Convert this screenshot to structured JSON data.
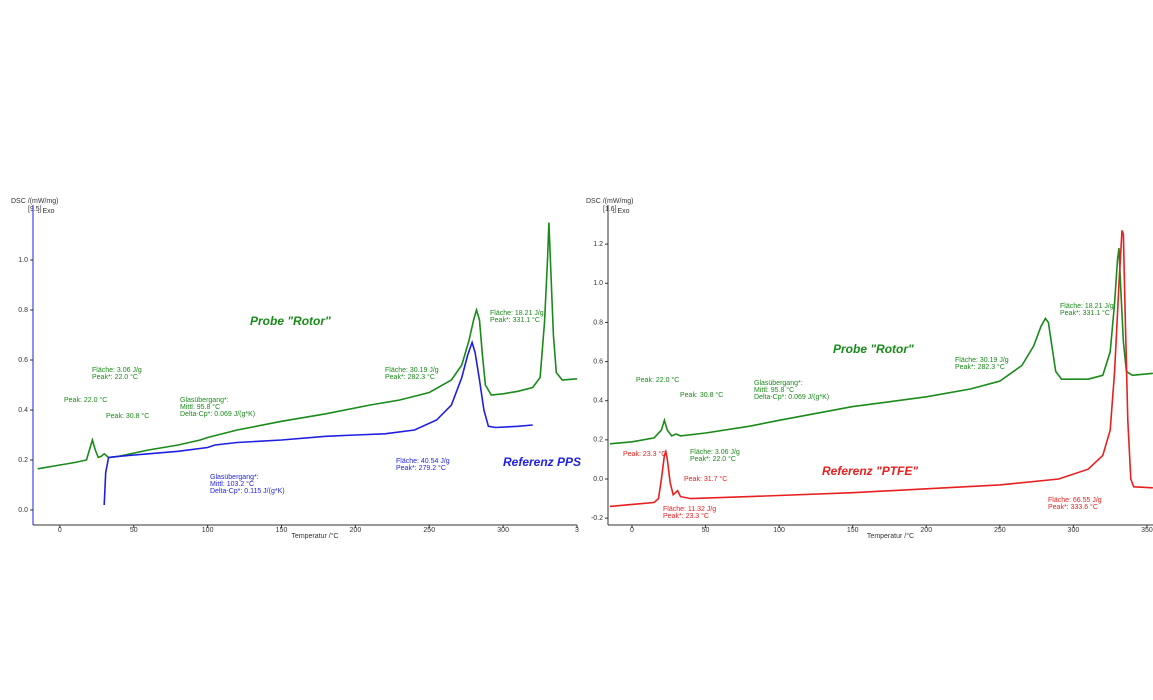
{
  "chart_data": [
    {
      "type": "line",
      "ylabel": "DSC /(mW/mg)",
      "yscale_label": "[9.5]",
      "exo_label": "↓ Exo",
      "xlabel": "Temperatur /°C",
      "xlim": [
        -18.2,
        350
      ],
      "ylim": [
        -0.06,
        1.22
      ],
      "axis_color": "#2020e0",
      "xticks": [
        0,
        50,
        100,
        150,
        200,
        250,
        300,
        {
          "value": 350,
          "label": "3"
        }
      ],
      "yticks": [
        {
          "value": 0,
          "label": "0.0"
        },
        0.2,
        0.4,
        0.6,
        0.8,
        {
          "value": 1,
          "label": "1.0"
        }
      ],
      "series": [
        {
          "color": "#1a8a1a",
          "x": [
            -15,
            0,
            10,
            18,
            20,
            22,
            24,
            26,
            28,
            30,
            33,
            40,
            60,
            80,
            95,
            100,
            120,
            150,
            180,
            210,
            230,
            250,
            265,
            272,
            277,
            280,
            282,
            284,
            286,
            288,
            292,
            300,
            310,
            320,
            325,
            328,
            330,
            331,
            332,
            334,
            336,
            340,
            350
          ],
          "values": [
            0.165,
            0.18,
            0.19,
            0.2,
            0.24,
            0.28,
            0.24,
            0.21,
            0.215,
            0.225,
            0.21,
            0.215,
            0.24,
            0.26,
            0.28,
            0.29,
            0.32,
            0.355,
            0.385,
            0.42,
            0.44,
            0.47,
            0.52,
            0.58,
            0.68,
            0.76,
            0.8,
            0.76,
            0.62,
            0.5,
            0.46,
            0.465,
            0.475,
            0.49,
            0.53,
            0.75,
            1.0,
            1.15,
            1.0,
            0.7,
            0.55,
            0.52,
            0.525
          ]
        },
        {
          "color": "#1f1fe0",
          "x": [
            30,
            31,
            33,
            40,
            60,
            80,
            100,
            105,
            120,
            150,
            180,
            200,
            220,
            240,
            255,
            265,
            272,
            276,
            279,
            281,
            284,
            287,
            290,
            295,
            310,
            320
          ],
          "values": [
            0.02,
            0.15,
            0.21,
            0.215,
            0.225,
            0.235,
            0.25,
            0.26,
            0.27,
            0.28,
            0.295,
            0.3,
            0.305,
            0.32,
            0.36,
            0.42,
            0.53,
            0.62,
            0.67,
            0.63,
            0.52,
            0.4,
            0.335,
            0.33,
            0.335,
            0.34
          ]
        }
      ],
      "annotations": [
        {
          "lines": [
            "Peak: 22.0 °C"
          ],
          "color": "#1a8a1a"
        },
        {
          "lines": [
            "Fläche: 3.06 J/g",
            "Peak*: 22.0 °C"
          ],
          "color": "#1a8a1a"
        },
        {
          "lines": [
            "Peak: 30.8 °C"
          ],
          "color": "#1a8a1a"
        },
        {
          "lines": [
            "Glasübergang*:",
            "Mittl: 95.8 °C",
            "Delta-Cp*: 0.069 J/(g*K)"
          ],
          "color": "#1a8a1a"
        },
        {
          "lines": [
            "Fläche: 30.19 J/g",
            "Peak*: 282.3 °C"
          ],
          "color": "#1a8a1a"
        },
        {
          "lines": [
            "Fläche: 18.21 J/g",
            "Peak*: 331.1 °C"
          ],
          "color": "#1a8a1a"
        },
        {
          "lines": [
            "Probe \"Rotor\""
          ],
          "color": "#1a8a1a"
        },
        {
          "lines": [
            "Referenz PPS"
          ],
          "color": "#1f1fe0"
        },
        {
          "lines": [
            "Glasübergang*:",
            "Mittl: 103.2 °C",
            "Delta-Cp*: 0.115 J/(g*K)"
          ],
          "color": "#1f1fe0"
        },
        {
          "lines": [
            "Fläche: 40.54 J/g",
            "Peak*: 279.2 °C"
          ],
          "color": "#1f1fe0"
        }
      ]
    },
    {
      "type": "line",
      "ylabel": "DSC /(mW/mg)",
      "yscale_label": "[1.6]",
      "exo_label": "↓ Exo",
      "xlabel": "Temperatur /°C",
      "xlim": [
        -16.3,
        354.1
      ],
      "ylim": [
        -0.235,
        1.4
      ],
      "axis_color": "#333333",
      "xticks": [
        0,
        50,
        100,
        150,
        200,
        250,
        300,
        350
      ],
      "yticks": [
        -0.2,
        {
          "value": 0,
          "label": "0.0"
        },
        0.2,
        0.4,
        0.6,
        0.8,
        {
          "value": 1,
          "label": "1.0"
        },
        1.2
      ],
      "series": [
        {
          "color": "#1a8a1a",
          "x": [
            -15,
            0,
            15,
            20,
            22,
            24,
            27,
            30,
            33,
            50,
            80,
            100,
            150,
            200,
            230,
            250,
            265,
            273,
            278,
            281,
            283,
            285,
            288,
            292,
            310,
            320,
            325,
            328,
            330,
            331,
            332,
            334,
            336,
            340,
            354
          ],
          "values": [
            0.18,
            0.19,
            0.21,
            0.25,
            0.3,
            0.25,
            0.22,
            0.23,
            0.22,
            0.235,
            0.27,
            0.3,
            0.37,
            0.42,
            0.46,
            0.5,
            0.58,
            0.68,
            0.78,
            0.82,
            0.8,
            0.7,
            0.55,
            0.51,
            0.51,
            0.53,
            0.65,
            0.9,
            1.12,
            1.18,
            1.0,
            0.7,
            0.55,
            0.53,
            0.54
          ]
        },
        {
          "color": "#e82020",
          "x": [
            -15,
            0,
            15,
            18,
            20,
            22,
            23,
            24,
            26,
            28,
            31,
            33,
            40,
            80,
            150,
            200,
            250,
            290,
            310,
            320,
            325,
            328,
            331,
            333,
            334,
            335,
            337,
            339,
            341,
            354
          ],
          "values": [
            -0.14,
            -0.13,
            -0.12,
            -0.1,
            0.0,
            0.12,
            0.14,
            0.1,
            -0.02,
            -0.08,
            -0.06,
            -0.09,
            -0.1,
            -0.09,
            -0.07,
            -0.05,
            -0.03,
            0.0,
            0.05,
            0.12,
            0.25,
            0.55,
            1.0,
            1.27,
            1.25,
            0.9,
            0.3,
            0.0,
            -0.04,
            -0.045
          ]
        }
      ],
      "annotations": [
        {
          "lines": [
            "Peak: 22.0 °C"
          ],
          "color": "#1a8a1a"
        },
        {
          "lines": [
            "Peak: 30.8 °C"
          ],
          "color": "#1a8a1a"
        },
        {
          "lines": [
            "Fläche: 3.06 J/g",
            "Peak*: 22.0 °C"
          ],
          "color": "#1a8a1a"
        },
        {
          "lines": [
            "Glasübergang*:",
            "Mittl: 95.8 °C",
            "Delta-Cp*: 0.069 J/(g*K)"
          ],
          "color": "#1a8a1a"
        },
        {
          "lines": [
            "Fläche: 30.19 J/g",
            "Peak*: 282.3 °C"
          ],
          "color": "#1a8a1a"
        },
        {
          "lines": [
            "Fläche: 18.21 J/g",
            "Peak*: 331.1 °C"
          ],
          "color": "#1a8a1a"
        },
        {
          "lines": [
            "Probe \"Rotor\""
          ],
          "color": "#1a8a1a"
        },
        {
          "lines": [
            "Peak: 23.3 °C"
          ],
          "color": "#e82020"
        },
        {
          "lines": [
            "Peak: 31.7 °C"
          ],
          "color": "#e82020"
        },
        {
          "lines": [
            "Fläche: 11.32 J/g",
            "Peak*: 23.3 °C"
          ],
          "color": "#e82020"
        },
        {
          "lines": [
            "Fläche: 66.55 J/g",
            "Peak*: 333.6 °C"
          ],
          "color": "#e82020"
        },
        {
          "lines": [
            "Referenz \"PTFE\""
          ],
          "color": "#e82020"
        }
      ]
    }
  ]
}
